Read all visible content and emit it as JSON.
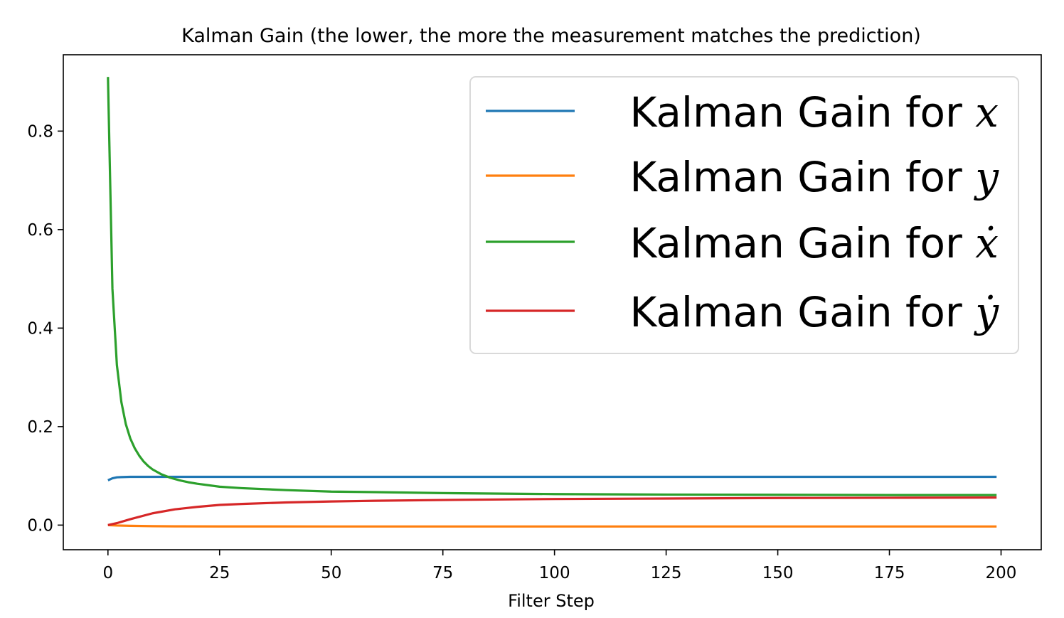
{
  "chart_data": {
    "type": "line",
    "title": "Kalman Gain (the lower, the more the measurement matches the prediction)",
    "xlabel": "Filter Step",
    "ylabel": "",
    "xlim": [
      -10,
      209
    ],
    "ylim": [
      -0.05,
      0.955
    ],
    "xticks": [
      0,
      25,
      50,
      75,
      100,
      125,
      150,
      175,
      200
    ],
    "xtick_labels": [
      "0",
      "25",
      "50",
      "75",
      "100",
      "125",
      "150",
      "175",
      "200"
    ],
    "yticks": [
      0.0,
      0.2,
      0.4,
      0.6,
      0.8
    ],
    "ytick_labels": [
      "0.0",
      "0.2",
      "0.4",
      "0.6",
      "0.8"
    ],
    "grid": false,
    "legend_position": "upper right",
    "series": [
      {
        "name": "Kalman Gain for x",
        "legend_prefix": "Kalman Gain for ",
        "legend_symbol": "x",
        "color": "#1f77b4",
        "x": [
          0,
          1,
          2,
          3,
          5,
          10,
          25,
          50,
          100,
          150,
          199
        ],
        "values": [
          0.091,
          0.095,
          0.097,
          0.0975,
          0.098,
          0.098,
          0.098,
          0.098,
          0.098,
          0.098,
          0.098
        ]
      },
      {
        "name": "Kalman Gain for y",
        "legend_prefix": "Kalman Gain for ",
        "legend_symbol": "y",
        "color": "#ff7f0e",
        "x": [
          0,
          2,
          5,
          10,
          15,
          25,
          50,
          100,
          150,
          199
        ],
        "values": [
          0.0,
          -0.0008,
          -0.0015,
          -0.0022,
          -0.0025,
          -0.0027,
          -0.0028,
          -0.0028,
          -0.0028,
          -0.0028
        ]
      },
      {
        "name": "Kalman Gain for ẋ",
        "legend_prefix": "Kalman Gain for ",
        "legend_symbol": "ẋ",
        "color": "#2ca02c",
        "x": [
          0,
          1,
          2,
          3,
          4,
          5,
          6,
          7,
          8,
          9,
          10,
          12,
          14,
          16,
          18,
          20,
          25,
          30,
          40,
          50,
          60,
          75,
          100,
          125,
          150,
          175,
          199
        ],
        "values": [
          0.91,
          0.48,
          0.325,
          0.25,
          0.205,
          0.176,
          0.156,
          0.141,
          0.129,
          0.12,
          0.113,
          0.103,
          0.096,
          0.091,
          0.087,
          0.084,
          0.078,
          0.075,
          0.071,
          0.068,
          0.067,
          0.065,
          0.063,
          0.062,
          0.0615,
          0.061,
          0.061
        ]
      },
      {
        "name": "Kalman Gain for ẏ",
        "legend_prefix": "Kalman Gain for ",
        "legend_symbol": "ẏ",
        "color": "#d62728",
        "x": [
          0,
          2,
          5,
          10,
          15,
          20,
          25,
          30,
          40,
          50,
          60,
          75,
          100,
          125,
          150,
          175,
          199
        ],
        "values": [
          0.0,
          0.004,
          0.012,
          0.024,
          0.032,
          0.037,
          0.041,
          0.043,
          0.046,
          0.048,
          0.0495,
          0.051,
          0.053,
          0.054,
          0.055,
          0.0555,
          0.056
        ]
      }
    ]
  }
}
